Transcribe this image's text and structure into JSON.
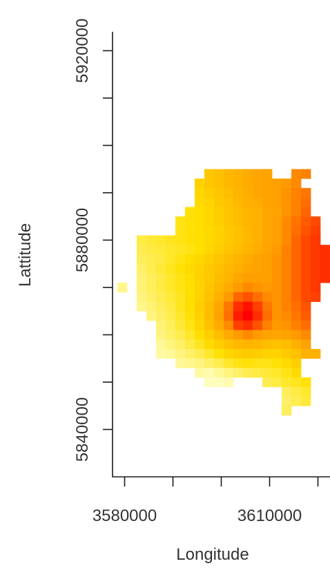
{
  "chart_data": {
    "type": "heatmap",
    "title": "",
    "xlabel": "Longitude",
    "ylabel": "Lattitude",
    "x_ticks": [
      {
        "value": 3580000,
        "label": "3580000"
      },
      {
        "value": 3590000,
        "label": ""
      },
      {
        "value": 3600000,
        "label": ""
      },
      {
        "value": 3610000,
        "label": "3610000"
      },
      {
        "value": 3620000,
        "label": ""
      }
    ],
    "y_ticks": [
      {
        "value": 5840000,
        "label": "5840000"
      },
      {
        "value": 5850000,
        "label": ""
      },
      {
        "value": 5860000,
        "label": ""
      },
      {
        "value": 5870000,
        "label": ""
      },
      {
        "value": 5880000,
        "label": "5880000"
      },
      {
        "value": 5890000,
        "label": ""
      },
      {
        "value": 5900000,
        "label": ""
      },
      {
        "value": 5910000,
        "label": ""
      },
      {
        "value": 5920000,
        "label": "5920000"
      }
    ],
    "xlim": [
      3577500,
      3622500
    ],
    "ylim": [
      5830000,
      5924000
    ],
    "cell_size": 2000,
    "x_centers_from": 3577500,
    "y_centers_from": 5854000,
    "color_scale": [
      "#ffffc8",
      "#ffe000",
      "#ff9900",
      "#ff0000"
    ],
    "value_range": [
      0,
      100
    ],
    "grid": false,
    "legend": "none",
    "rows": [
      {
        "y": 5894000,
        "cells": [
          null,
          null,
          null,
          null,
          null,
          null,
          null,
          null,
          null,
          null,
          45,
          48,
          52,
          55,
          58,
          60,
          62,
          null,
          null,
          70,
          72,
          null,
          null
        ]
      },
      {
        "y": 5892000,
        "cells": [
          null,
          null,
          null,
          null,
          null,
          null,
          null,
          null,
          null,
          40,
          45,
          48,
          52,
          55,
          58,
          60,
          62,
          64,
          66,
          70,
          null,
          null,
          null
        ]
      },
      {
        "y": 5890000,
        "cells": [
          null,
          null,
          null,
          null,
          null,
          null,
          null,
          null,
          null,
          38,
          42,
          46,
          50,
          54,
          57,
          60,
          62,
          64,
          68,
          72,
          74,
          null,
          null
        ]
      },
      {
        "y": 5888000,
        "cells": [
          null,
          null,
          null,
          null,
          null,
          null,
          null,
          null,
          null,
          36,
          40,
          44,
          48,
          52,
          56,
          58,
          62,
          64,
          68,
          72,
          76,
          null,
          null
        ]
      },
      {
        "y": 5886000,
        "cells": [
          null,
          null,
          null,
          null,
          null,
          null,
          null,
          null,
          32,
          34,
          38,
          42,
          46,
          50,
          54,
          56,
          60,
          62,
          68,
          72,
          78,
          null,
          null
        ]
      },
      {
        "y": 5884000,
        "cells": [
          null,
          null,
          null,
          null,
          null,
          null,
          null,
          30,
          32,
          34,
          38,
          42,
          46,
          50,
          54,
          56,
          60,
          64,
          70,
          75,
          80,
          84,
          null
        ]
      },
      {
        "y": 5882000,
        "cells": [
          null,
          null,
          null,
          null,
          null,
          null,
          null,
          30,
          32,
          34,
          36,
          40,
          44,
          48,
          52,
          56,
          60,
          64,
          70,
          76,
          82,
          86,
          null
        ]
      },
      {
        "y": 5880000,
        "cells": [
          null,
          null,
          null,
          22,
          24,
          26,
          28,
          30,
          32,
          34,
          36,
          40,
          44,
          48,
          52,
          56,
          60,
          64,
          70,
          78,
          84,
          88,
          null
        ]
      },
      {
        "y": 5878000,
        "cells": [
          null,
          null,
          null,
          20,
          22,
          24,
          26,
          28,
          30,
          34,
          38,
          42,
          46,
          50,
          54,
          58,
          62,
          66,
          72,
          78,
          84,
          88,
          90
        ]
      },
      {
        "y": 5876000,
        "cells": [
          null,
          null,
          null,
          18,
          20,
          22,
          26,
          30,
          34,
          38,
          42,
          46,
          50,
          54,
          58,
          62,
          64,
          68,
          72,
          78,
          84,
          88,
          90
        ]
      },
      {
        "y": 5874000,
        "cells": [
          null,
          null,
          null,
          16,
          20,
          24,
          28,
          32,
          36,
          40,
          44,
          48,
          52,
          56,
          60,
          62,
          64,
          68,
          72,
          78,
          84,
          88,
          90
        ]
      },
      {
        "y": 5872000,
        "cells": [
          null,
          null,
          null,
          14,
          18,
          22,
          26,
          30,
          34,
          40,
          44,
          50,
          54,
          60,
          64,
          64,
          64,
          68,
          72,
          78,
          84,
          88,
          90
        ]
      },
      {
        "y": 5870000,
        "cells": [
          null,
          10,
          null,
          14,
          18,
          22,
          26,
          30,
          34,
          40,
          46,
          52,
          58,
          66,
          70,
          68,
          66,
          68,
          72,
          78,
          84,
          88,
          null
        ]
      },
      {
        "y": 5868000,
        "cells": [
          null,
          null,
          null,
          12,
          16,
          20,
          24,
          28,
          34,
          40,
          48,
          56,
          66,
          78,
          82,
          76,
          70,
          68,
          72,
          78,
          84,
          86,
          null
        ]
      },
      {
        "y": 5866000,
        "cells": [
          null,
          null,
          null,
          10,
          14,
          18,
          22,
          28,
          34,
          42,
          50,
          60,
          74,
          90,
          96,
          86,
          74,
          68,
          72,
          76,
          82,
          null,
          null
        ]
      },
      {
        "y": 5864000,
        "cells": [
          null,
          null,
          null,
          null,
          12,
          16,
          20,
          26,
          32,
          40,
          50,
          62,
          76,
          94,
          100,
          90,
          76,
          68,
          70,
          74,
          80,
          null,
          null
        ]
      },
      {
        "y": 5862000,
        "cells": [
          null,
          null,
          null,
          null,
          null,
          14,
          18,
          24,
          30,
          38,
          48,
          58,
          70,
          86,
          90,
          82,
          72,
          66,
          68,
          72,
          76,
          null,
          null
        ]
      },
      {
        "y": 5860000,
        "cells": [
          null,
          null,
          null,
          null,
          null,
          12,
          16,
          20,
          26,
          34,
          42,
          50,
          58,
          66,
          70,
          66,
          62,
          60,
          62,
          66,
          70,
          null,
          null
        ]
      },
      {
        "y": 5858000,
        "cells": [
          null,
          null,
          null,
          null,
          null,
          8,
          12,
          16,
          22,
          28,
          36,
          42,
          48,
          52,
          54,
          52,
          50,
          48,
          50,
          56,
          62,
          null,
          null
        ]
      },
      {
        "y": 5856000,
        "cells": [
          null,
          null,
          null,
          null,
          null,
          6,
          8,
          12,
          16,
          20,
          26,
          32,
          38,
          42,
          44,
          42,
          40,
          40,
          44,
          48,
          56,
          56,
          null
        ]
      },
      {
        "y": 5854000,
        "cells": [
          null,
          null,
          null,
          null,
          null,
          null,
          null,
          8,
          10,
          12,
          16,
          20,
          26,
          30,
          32,
          30,
          30,
          32,
          36,
          42,
          null,
          null,
          null
        ]
      },
      {
        "y": 5852000,
        "cells": [
          null,
          null,
          null,
          null,
          null,
          null,
          null,
          null,
          null,
          6,
          4,
          8,
          12,
          16,
          20,
          22,
          24,
          26,
          30,
          36,
          null,
          null,
          null
        ]
      },
      {
        "y": 5850000,
        "cells": [
          null,
          null,
          null,
          null,
          null,
          null,
          null,
          null,
          null,
          null,
          2,
          2,
          4,
          null,
          null,
          null,
          20,
          22,
          26,
          28,
          32,
          null,
          null
        ]
      },
      {
        "y": 5848000,
        "cells": [
          null,
          null,
          null,
          null,
          null,
          null,
          null,
          null,
          null,
          null,
          null,
          null,
          null,
          null,
          null,
          null,
          null,
          null,
          18,
          22,
          26,
          null,
          null
        ]
      },
      {
        "y": 5846000,
        "cells": [
          null,
          null,
          null,
          null,
          null,
          null,
          null,
          null,
          null,
          null,
          null,
          null,
          null,
          null,
          null,
          null,
          null,
          null,
          16,
          20,
          24,
          null,
          null
        ]
      },
      {
        "y": 5844000,
        "cells": [
          null,
          null,
          null,
          null,
          null,
          null,
          null,
          null,
          null,
          null,
          null,
          null,
          null,
          null,
          null,
          null,
          null,
          null,
          18,
          null,
          null,
          null,
          null
        ]
      }
    ]
  }
}
